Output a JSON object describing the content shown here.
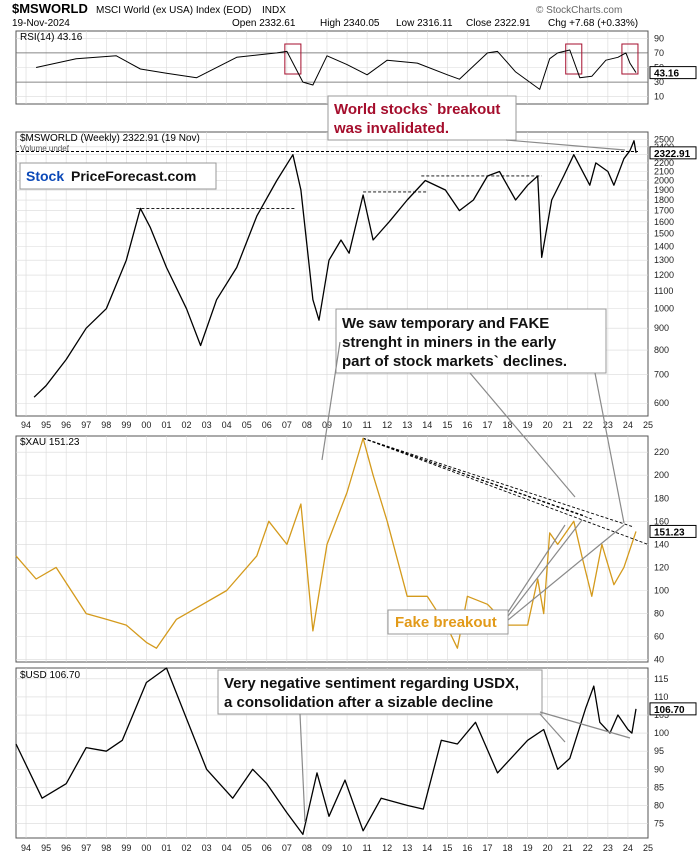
{
  "header": {
    "symbol": "$MSWORLD",
    "name": "MSCI World (ex USA) Index (EOD)",
    "exchange": "INDX",
    "date": "19-Nov-2024",
    "open": "Open 2332.61",
    "high": "High 2340.05",
    "low": "Low 2316.11",
    "close": "Close 2322.91",
    "change": "Chg +7.68 (+0.33%)",
    "copyright": "© StockCharts.com"
  },
  "colors": {
    "price": "#000000",
    "down": "#cc0000",
    "xau": "#d49a1c",
    "highlight": "#f8c585",
    "annot_red": "#a50d2c",
    "annot_gold": "#e29a19",
    "grid": "#d9d9d9"
  },
  "chart_data": [
    {
      "id": "rsi",
      "type": "line",
      "legend": "RSI(14) 43.16",
      "value_label": "43.16",
      "y_ticks": [
        "90",
        "70",
        "50",
        "30",
        "10"
      ],
      "ylim": [
        0,
        100
      ],
      "levels": [
        70,
        30
      ],
      "x": [
        1995.0,
        1997.0,
        1999.0,
        2000.2,
        2001.5,
        2003.0,
        2005.0,
        2007.0,
        2007.5,
        2008.3,
        2008.8,
        2009.5,
        2010.5,
        2011.5,
        2012.5,
        2014.0,
        2015.5,
        2016.1,
        2017.5,
        2018.0,
        2018.9,
        2020.1,
        2020.6,
        2021.0,
        2021.6,
        2022.1,
        2022.7,
        2023.4,
        2024.0,
        2024.4,
        2024.6,
        2024.9
      ],
      "y": [
        50,
        62,
        66,
        48,
        42,
        36,
        64,
        70,
        72,
        30,
        26,
        66,
        54,
        40,
        60,
        56,
        40,
        34,
        70,
        72,
        44,
        20,
        62,
        70,
        74,
        36,
        38,
        60,
        64,
        70,
        56,
        43
      ]
    },
    {
      "id": "msworld",
      "type": "line",
      "legend": "$MSWORLD (Weekly) 2322.91 (19 Nov)",
      "sublegend": "Volume undef",
      "value_label": "2322.91",
      "scale": "log",
      "y_ticks": [
        "2500",
        "2400",
        "2300",
        "2200",
        "2100",
        "2000",
        "1900",
        "1800",
        "1700",
        "1600",
        "1500",
        "1400",
        "1300",
        "1200",
        "1100",
        "1000",
        "900",
        "800",
        "700",
        "600"
      ],
      "ylim": [
        560,
        2600
      ],
      "x": [
        1994.9,
        1995.5,
        1996.5,
        1997.5,
        1998.5,
        1999.5,
        2000.2,
        2000.7,
        2001.5,
        2002.5,
        2003.2,
        2004.0,
        2005.0,
        2006.0,
        2007.0,
        2007.8,
        2008.2,
        2008.8,
        2009.1,
        2009.6,
        2010.2,
        2010.6,
        2011.3,
        2011.8,
        2012.6,
        2013.5,
        2014.4,
        2015.4,
        2016.1,
        2016.8,
        2017.5,
        2018.1,
        2018.9,
        2019.5,
        2020.0,
        2020.2,
        2020.7,
        2021.3,
        2021.8,
        2022.6,
        2022.9,
        2023.5,
        2023.8,
        2024.3,
        2024.6,
        2024.8,
        2024.9
      ],
      "y": [
        620,
        660,
        760,
        900,
        1000,
        1300,
        1720,
        1550,
        1250,
        1000,
        820,
        1050,
        1250,
        1650,
        2000,
        2300,
        1900,
        1050,
        940,
        1300,
        1450,
        1350,
        1850,
        1450,
        1600,
        1800,
        2000,
        1900,
        1700,
        1800,
        2050,
        2100,
        1800,
        1950,
        2050,
        1320,
        1800,
        2050,
        2300,
        1950,
        2200,
        2100,
        1950,
        2250,
        2350,
        2480,
        2322.91
      ],
      "annotations": [
        {
          "type": "line",
          "points": [
            [
              2000.0,
              1720
            ],
            [
              2007.9,
              1720
            ]
          ]
        },
        {
          "type": "line",
          "points": [
            [
              2011.3,
              1880
            ],
            [
              2014.5,
              1880
            ]
          ]
        },
        {
          "type": "line",
          "points": [
            [
              2014.2,
              2050
            ],
            [
              2020.2,
              2050
            ]
          ]
        },
        {
          "type": "line",
          "points": [
            [
              1994.0,
              2340
            ],
            [
              2025.0,
              2340
            ]
          ]
        },
        {
          "type": "band",
          "x": [
            2007.8,
            2008.4
          ]
        },
        {
          "type": "band",
          "x": [
            2021.6,
            2022.3
          ]
        },
        {
          "type": "band",
          "x": [
            2024.3,
            2024.8
          ]
        },
        {
          "type": "box",
          "x": [
            2007.4,
            2008.2
          ]
        },
        {
          "type": "box",
          "x": [
            2021.4,
            2022.2
          ]
        },
        {
          "type": "box",
          "x": [
            2024.2,
            2025.0
          ]
        }
      ]
    },
    {
      "id": "xau",
      "type": "line",
      "legend": "$XAU 151.23",
      "value_label": "151.23",
      "y_ticks": [
        "220",
        "200",
        "180",
        "160",
        "140",
        "120",
        "100",
        "80",
        "60",
        "40"
      ],
      "ylim": [
        38,
        234
      ],
      "x": [
        1994.0,
        1995.0,
        1996.0,
        1997.5,
        1998.5,
        1999.5,
        2000.5,
        2001.0,
        2002.0,
        2003.0,
        2004.5,
        2006.0,
        2006.6,
        2007.5,
        2008.2,
        2008.8,
        2009.5,
        2010.5,
        2011.3,
        2011.8,
        2012.5,
        2013.5,
        2014.5,
        2015.5,
        2016.0,
        2016.5,
        2017.5,
        2018.5,
        2019.5,
        2020.0,
        2020.3,
        2020.6,
        2021.0,
        2021.8,
        2022.2,
        2022.7,
        2023.2,
        2023.8,
        2024.3,
        2024.9
      ],
      "y": [
        130,
        110,
        120,
        80,
        75,
        70,
        55,
        50,
        75,
        85,
        100,
        130,
        160,
        140,
        175,
        65,
        140,
        185,
        232,
        200,
        160,
        95,
        95,
        68,
        50,
        95,
        88,
        70,
        70,
        110,
        80,
        150,
        140,
        160,
        130,
        95,
        140,
        105,
        120,
        151.23
      ],
      "annotations": [
        {
          "type": "line",
          "points": [
            [
              2011.3,
              232
            ],
            [
              2022.3,
              165
            ]
          ]
        },
        {
          "type": "line",
          "points": [
            [
              2011.3,
              232
            ],
            [
              2022.7,
              162
            ]
          ]
        },
        {
          "type": "line",
          "points": [
            [
              2011.3,
              232
            ],
            [
              2024.8,
              155
            ]
          ]
        },
        {
          "type": "line",
          "points": [
            [
              2011.3,
              232
            ],
            [
              2025.5,
              140
            ]
          ]
        },
        {
          "type": "band",
          "x": [
            2007.8,
            2008.4
          ]
        },
        {
          "type": "band",
          "x": [
            2021.6,
            2022.3
          ]
        },
        {
          "type": "band",
          "x": [
            2024.3,
            2024.8
          ]
        }
      ]
    },
    {
      "id": "usd",
      "type": "line",
      "legend": "$USD 106.70",
      "value_label": "106.70",
      "y_ticks": [
        "115",
        "110",
        "105",
        "100",
        "95",
        "90",
        "85",
        "80",
        "75"
      ],
      "ylim": [
        71,
        118
      ],
      "x": [
        1994.0,
        1995.3,
        1996.5,
        1997.5,
        1998.5,
        1999.3,
        2000.5,
        2001.5,
        2002.5,
        2003.5,
        2004.8,
        2005.8,
        2006.5,
        2007.5,
        2008.3,
        2009.0,
        2009.6,
        2010.4,
        2011.3,
        2012.2,
        2013.5,
        2014.3,
        2015.2,
        2016.0,
        2016.9,
        2018.0,
        2019.5,
        2020.3,
        2021.0,
        2021.6,
        2022.4,
        2022.8,
        2023.1,
        2023.6,
        2024.0,
        2024.5,
        2024.7,
        2024.9
      ],
      "y": [
        97,
        82,
        86,
        96,
        95,
        98,
        114,
        118,
        104,
        90,
        82,
        90,
        86,
        78,
        72,
        89,
        77,
        87,
        73,
        82,
        80,
        79,
        98,
        97,
        103,
        89,
        98,
        101,
        90,
        93,
        107,
        113,
        103,
        100,
        105,
        101,
        100,
        106.7
      ]
    }
  ],
  "x_axis": {
    "labels": [
      "94",
      "95",
      "96",
      "97",
      "98",
      "99",
      "00",
      "01",
      "02",
      "03",
      "04",
      "05",
      "06",
      "07",
      "08",
      "09",
      "10",
      "11",
      "12",
      "13",
      "14",
      "15",
      "16",
      "17",
      "18",
      "19",
      "20",
      "21",
      "22",
      "23",
      "24",
      "25"
    ],
    "start_year": 1994
  },
  "logo": {
    "part1": "Stock",
    "part2": "PriceForecast.com"
  },
  "callouts": {
    "breakout_line1": "World stocks` breakout",
    "breakout_line2": "was invalidated.",
    "miners_line1": "We saw temporary and FAKE",
    "miners_line2": "strenght in miners in the early",
    "miners_line3": "part of stock markets` declines.",
    "fake_breakout": "Fake breakout",
    "usd_line1": "Very negative sentiment regarding USDX,",
    "usd_line2": "a consolidation after a sizable decline"
  }
}
